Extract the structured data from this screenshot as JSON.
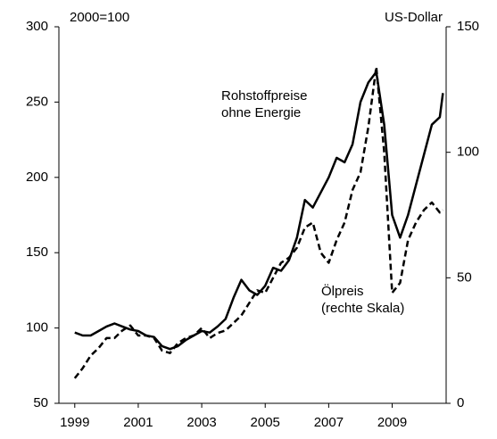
{
  "chart_data": {
    "type": "line",
    "annotations": [
      {
        "text": "2000=100"
      },
      {
        "text": "US-Dollar"
      },
      {
        "lines": [
          "Rohstoffpreise",
          "ohne Energie"
        ]
      },
      {
        "lines": [
          "Ölpreis",
          "(rechte Skala)"
        ]
      }
    ],
    "xlim": [
      1998.5,
      2010.7
    ],
    "xticks": [
      1999,
      2001,
      2003,
      2005,
      2007,
      2009
    ],
    "ylim": [
      50,
      300
    ],
    "yticks": [
      50,
      100,
      150,
      200,
      250,
      300
    ],
    "y2lim": [
      0,
      150
    ],
    "y2ticks": [
      0,
      50,
      100,
      150
    ],
    "series": [
      {
        "name": "Rohstoffpreise ohne Energie",
        "color": "#000000",
        "dash": false,
        "x": [
          1999.0,
          1999.25,
          1999.5,
          1999.75,
          2000.0,
          2000.25,
          2000.5,
          2000.75,
          2001.0,
          2001.25,
          2001.5,
          2001.75,
          2002.0,
          2002.25,
          2002.5,
          2002.75,
          2003.0,
          2003.25,
          2003.5,
          2003.75,
          2004.0,
          2004.25,
          2004.5,
          2004.75,
          2005.0,
          2005.25,
          2005.5,
          2005.75,
          2006.0,
          2006.25,
          2006.5,
          2006.75,
          2007.0,
          2007.25,
          2007.5,
          2007.75,
          2008.0,
          2008.25,
          2008.5,
          2008.75,
          2009.0,
          2009.25,
          2009.5,
          2009.75,
          2010.0,
          2010.25,
          2010.5,
          2010.6
        ],
        "values": [
          97,
          95,
          95,
          98,
          101,
          103,
          101,
          99,
          98,
          95,
          94,
          88,
          86,
          88,
          92,
          95,
          98,
          97,
          101,
          106,
          120,
          132,
          125,
          122,
          128,
          140,
          138,
          145,
          160,
          185,
          180,
          190,
          200,
          213,
          210,
          222,
          250,
          263,
          270,
          235,
          175,
          160,
          175,
          195,
          215,
          235,
          240,
          256
        ]
      },
      {
        "name": "Ölpreis",
        "color": "#000000",
        "dash": true,
        "axis": "y2",
        "x": [
          1999.0,
          1999.25,
          1999.5,
          1999.75,
          2000.0,
          2000.25,
          2000.5,
          2000.75,
          2001.0,
          2001.25,
          2001.5,
          2001.75,
          2002.0,
          2002.25,
          2002.5,
          2002.75,
          2003.0,
          2003.25,
          2003.5,
          2003.75,
          2004.0,
          2004.25,
          2004.5,
          2004.75,
          2005.0,
          2005.25,
          2005.5,
          2005.75,
          2006.0,
          2006.25,
          2006.5,
          2006.75,
          2007.0,
          2007.25,
          2007.5,
          2007.75,
          2008.0,
          2008.25,
          2008.5,
          2008.75,
          2009.0,
          2009.25,
          2009.5,
          2009.75,
          2010.0,
          2010.25,
          2010.5,
          2010.6
        ],
        "values": [
          10,
          14,
          19,
          22,
          26,
          26,
          29,
          31,
          27,
          27,
          26,
          21,
          20,
          24,
          26,
          27,
          30,
          26,
          28,
          29,
          32,
          35,
          40,
          45,
          44,
          50,
          56,
          58,
          62,
          70,
          72,
          60,
          56,
          65,
          72,
          85,
          92,
          110,
          134,
          100,
          44,
          48,
          65,
          72,
          77,
          80,
          76,
          77
        ]
      }
    ]
  }
}
